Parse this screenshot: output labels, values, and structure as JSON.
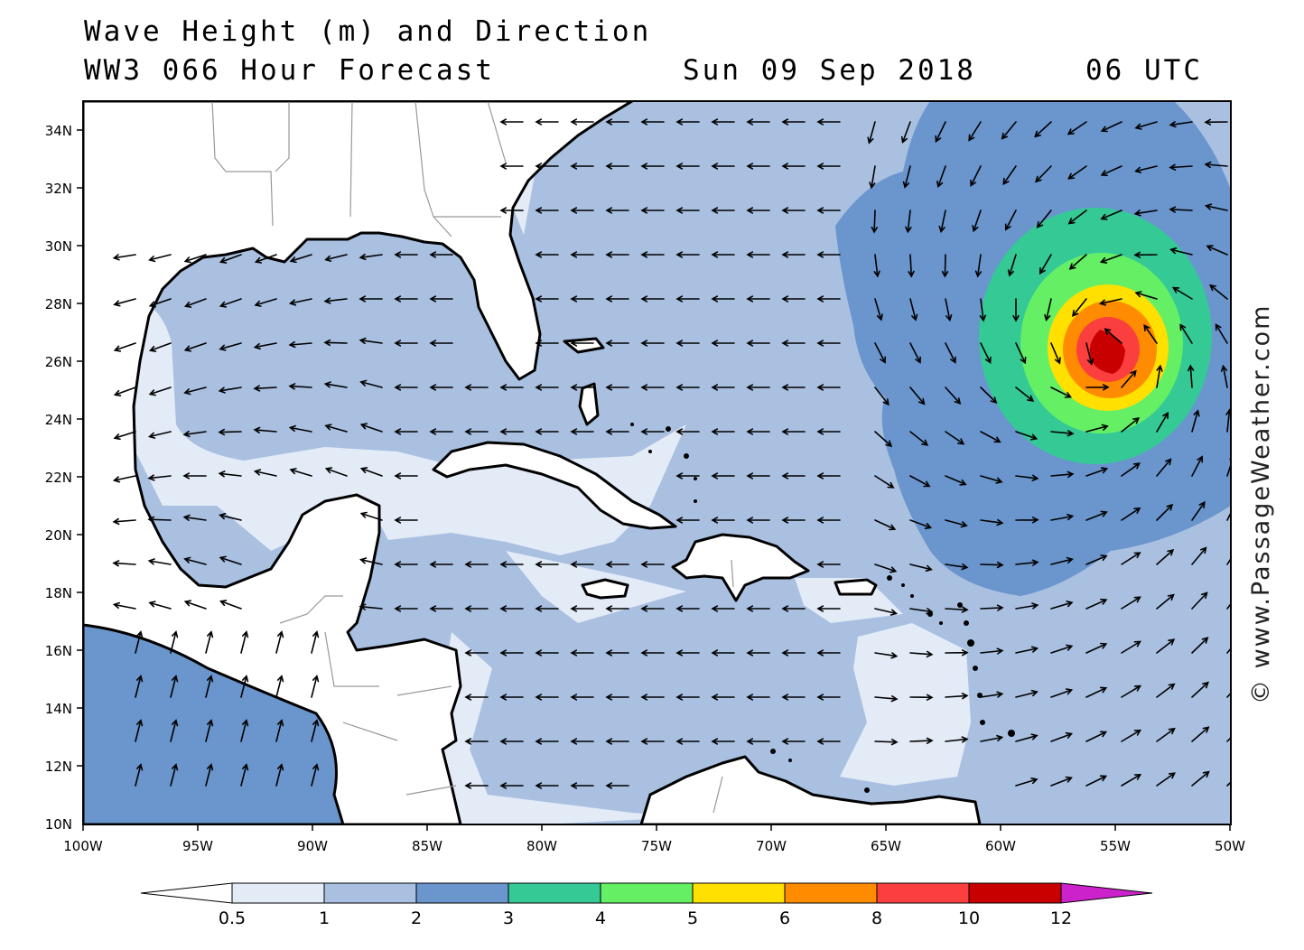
{
  "title": {
    "line1": "Wave Height (m) and Direction",
    "line2": "WW3 066 Hour Forecast",
    "date": "Sun 09 Sep 2018",
    "time": "06 UTC"
  },
  "credit": "© www.PassageWeather.com",
  "map": {
    "lat_labels": [
      "34N",
      "32N",
      "30N",
      "28N",
      "26N",
      "24N",
      "22N",
      "20N",
      "18N",
      "16N",
      "14N",
      "12N",
      "10N"
    ],
    "lon_labels": [
      "100W",
      "95W",
      "90W",
      "85W",
      "80W",
      "75W",
      "70W",
      "65W",
      "60W",
      "55W",
      "50W"
    ]
  },
  "legend": {
    "unit": "m",
    "bins": [
      {
        "label": "0.5",
        "color": "#e3ebf7"
      },
      {
        "label": "1",
        "color": "#a9c0e1"
      },
      {
        "label": "2",
        "color": "#6a95cd"
      },
      {
        "label": "3",
        "color": "#35c996"
      },
      {
        "label": "4",
        "color": "#65ef65"
      },
      {
        "label": "5",
        "color": "#ffe000"
      },
      {
        "label": "6",
        "color": "#ff8c00"
      },
      {
        "label": "8",
        "color": "#fb3f3f"
      },
      {
        "label": "10",
        "color": "#c80000"
      },
      {
        "label": "12",
        "color": "#cc22cc"
      }
    ]
  },
  "colors": {
    "land": "#ffffff",
    "coast": "#000000",
    "border": "#999999",
    "sea_dominant": "#a9c0e1",
    "cyclone_center": "Atlantic near 26N 55W"
  }
}
